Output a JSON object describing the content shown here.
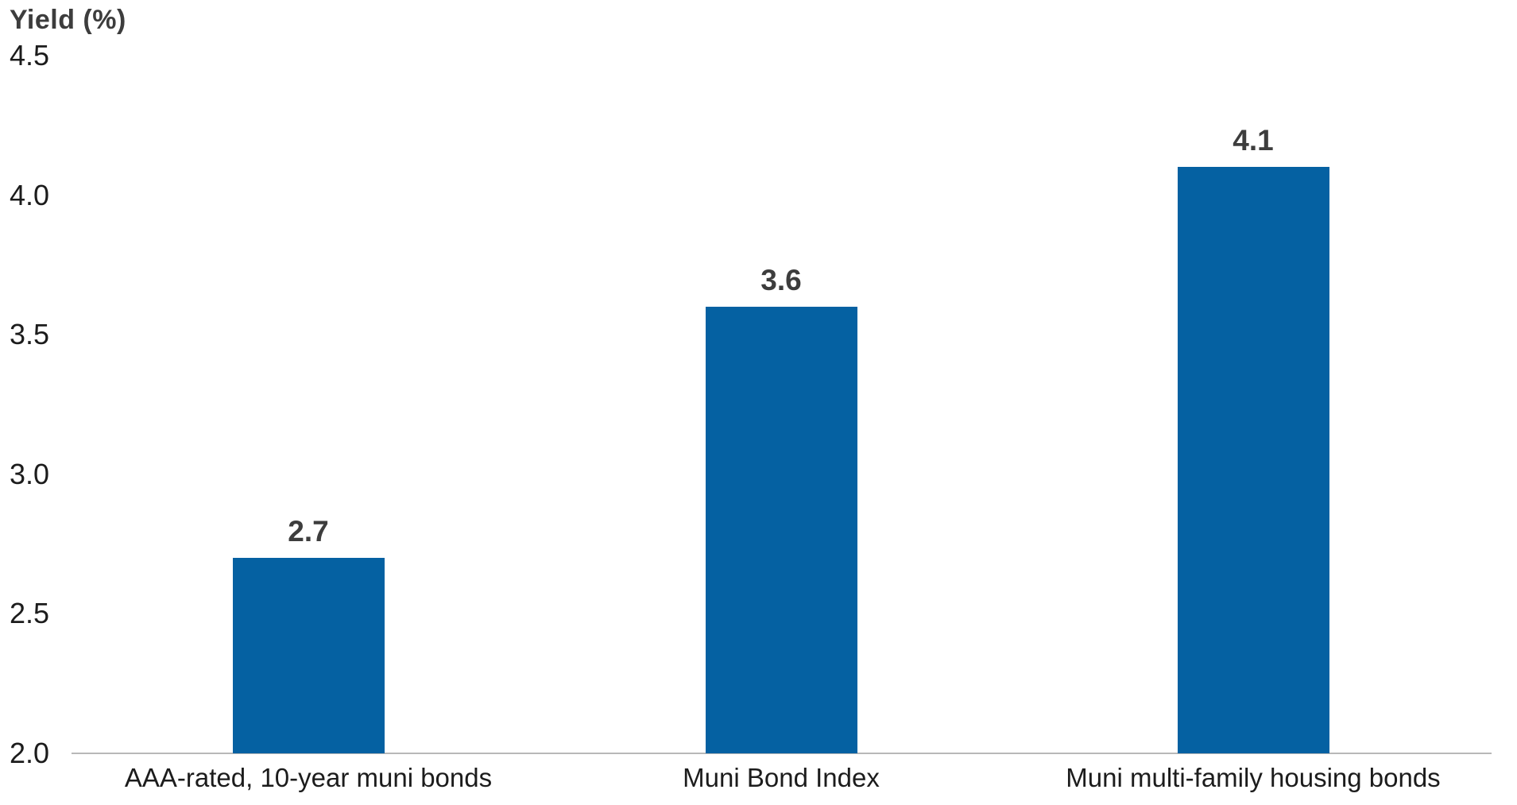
{
  "chart": {
    "title": "Yield (%)",
    "bar_color": "#0561a2",
    "axis_line_color": "#b8b8b8",
    "tick_text_color": "#1c1c1c",
    "value_text_color": "#3d3d3d"
  },
  "chart_data": {
    "type": "bar",
    "title": "Yield (%)",
    "categories": [
      "AAA-rated, 10-year muni bonds",
      "Muni Bond Index",
      "Muni multi-family housing bonds"
    ],
    "values": [
      2.7,
      3.6,
      4.1
    ],
    "value_labels": [
      "2.7",
      "3.6",
      "4.1"
    ],
    "xlabel": "",
    "ylabel": "Yield (%)",
    "ylim": [
      2.0,
      4.5
    ],
    "yticks": [
      4.5,
      4.0,
      3.5,
      3.0,
      2.5,
      2.0
    ],
    "ytick_labels": [
      "4.5",
      "4.0",
      "3.5",
      "3.0",
      "2.5",
      "2.0"
    ],
    "grid": false,
    "legend": false,
    "bar_color": "#0561a2"
  }
}
